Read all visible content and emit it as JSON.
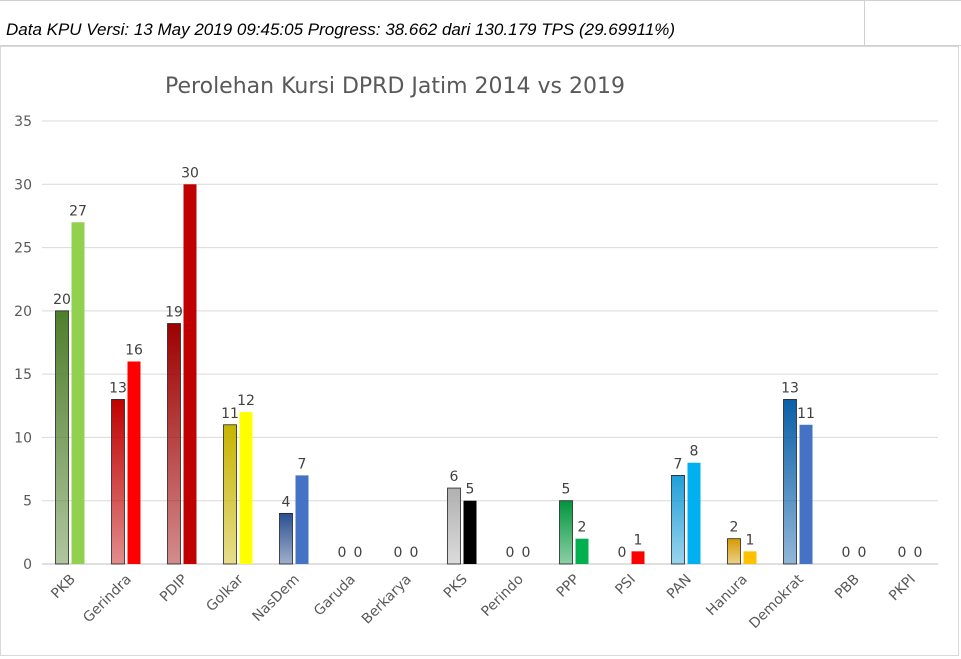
{
  "header": {
    "text": "Data KPU Versi: 13 May 2019 09:45:05 Progress: 38.662 dari 130.179 TPS (29.69911%)"
  },
  "chart_data": {
    "type": "bar",
    "title": "Perolehan Kursi DPRD Jatim 2014 vs 2019",
    "xlabel": "",
    "ylabel": "",
    "ylim": [
      0,
      35
    ],
    "yticks": [
      0,
      5,
      10,
      15,
      20,
      25,
      30,
      35
    ],
    "grid": true,
    "legend": "none",
    "categories": [
      "PKB",
      "Gerindra",
      "PDIP",
      "Golkar",
      "NasDem",
      "Garuda",
      "Berkarya",
      "PKS",
      "Perindo",
      "PPP",
      "PSI",
      "PAN",
      "Hanura",
      "Demokrat",
      "PBB",
      "PKPI"
    ],
    "series": [
      {
        "values": [
          20,
          13,
          19,
          11,
          4,
          0,
          0,
          6,
          0,
          5,
          0,
          7,
          2,
          13,
          0,
          0
        ]
      },
      {
        "values": [
          27,
          16,
          30,
          12,
          7,
          0,
          0,
          5,
          0,
          2,
          1,
          8,
          1,
          11,
          0,
          0
        ]
      }
    ],
    "colors": {
      "first": [
        "#4f7f2a",
        "#c00000",
        "#9e0000",
        "#c8b400",
        "#2a4f8f",
        "#cccccc",
        "#cccccc",
        "#b0b0b0",
        "#cccccc",
        "#00963c",
        "#cccccc",
        "#1f9fd8",
        "#d69a00",
        "#0a5fa8",
        "#cccccc",
        "#cccccc"
      ],
      "second": [
        "#92d050",
        "#ff0000",
        "#c00000",
        "#ffff00",
        "#4472c4",
        "#cccccc",
        "#cccccc",
        "#000000",
        "#cccccc",
        "#00b050",
        "#ff0000",
        "#00b0f0",
        "#ffc000",
        "#4472c4",
        "#cccccc",
        "#cccccc"
      ]
    }
  }
}
